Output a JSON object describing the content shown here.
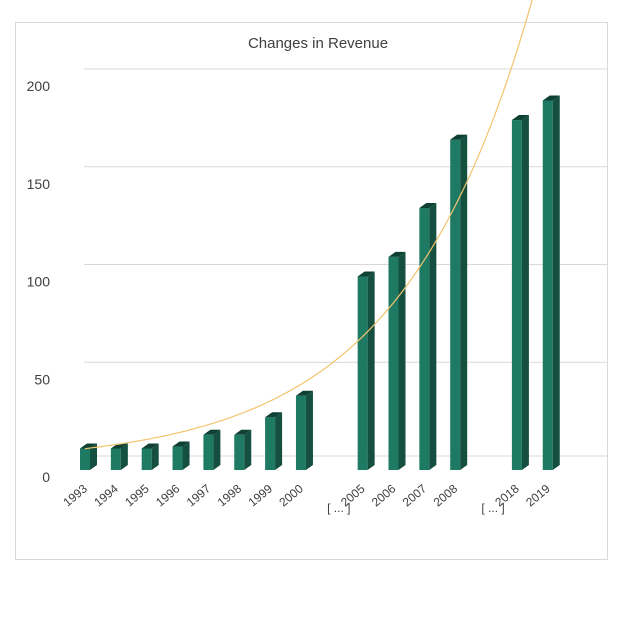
{
  "chart_data": {
    "type": "bar",
    "title": "Changes in Revenue",
    "xlabel": "",
    "ylabel": "",
    "ylim": [
      0,
      200
    ],
    "yticks": [
      0,
      50,
      100,
      150,
      200
    ],
    "grid": true,
    "legend": "none",
    "categories": [
      "1993",
      "1994",
      "1995",
      "1996",
      "1997",
      "1998",
      "1999",
      "2000",
      "[ ... ]",
      "2005",
      "2006",
      "2007",
      "2008",
      "[ ... ]",
      "2018",
      "2019"
    ],
    "values": [
      11,
      11,
      11,
      12,
      18,
      18,
      27,
      38,
      null,
      99,
      109,
      134,
      169,
      null,
      179,
      189
    ],
    "trendline": {
      "type": "exponential",
      "color": "#f2c46d"
    },
    "colors": {
      "bar_front": "#1f7a63",
      "bar_side": "#144f40",
      "bar_top": "#0f4034",
      "grid": "#d9d9d9"
    }
  }
}
